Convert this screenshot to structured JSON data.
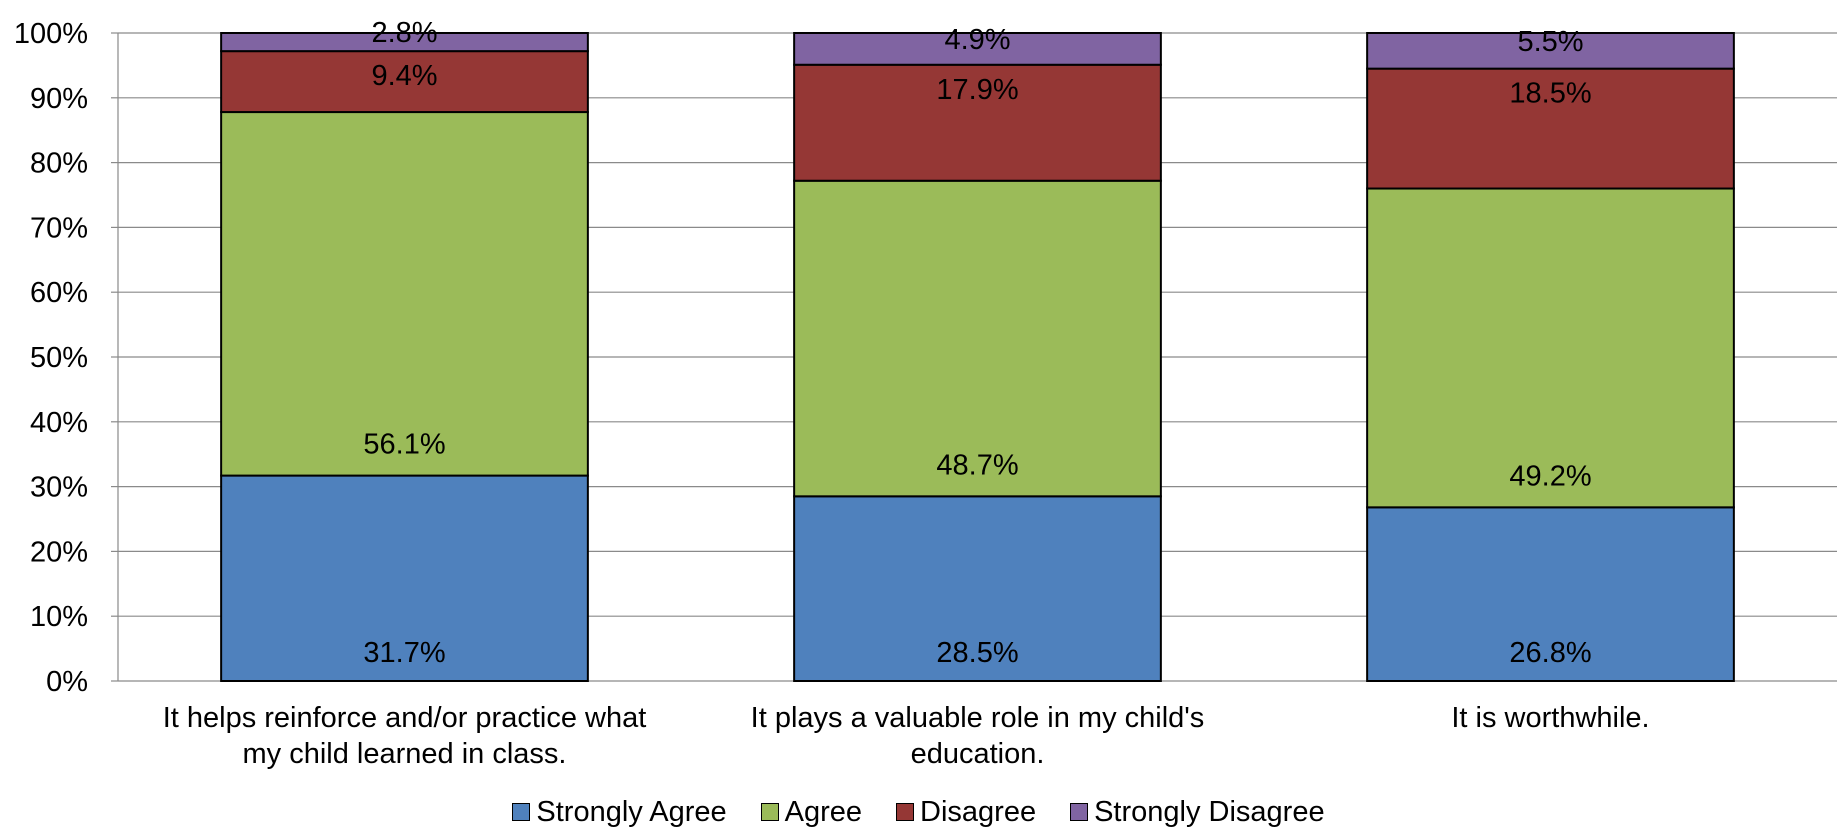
{
  "chart_data": {
    "type": "bar",
    "stacked": true,
    "title": "",
    "xlabel": "",
    "ylabel": "",
    "ylim": [
      0,
      100
    ],
    "y_ticks": [
      "0%",
      "10%",
      "20%",
      "30%",
      "40%",
      "50%",
      "60%",
      "70%",
      "80%",
      "90%",
      "100%"
    ],
    "grid": true,
    "legend_position": "bottom",
    "categories": [
      [
        "It helps reinforce and/or practice what",
        "my child learned in class."
      ],
      [
        "It plays a valuable role in my child's",
        "education."
      ],
      [
        "It is worthwhile."
      ]
    ],
    "series": [
      {
        "name": "Strongly Agree",
        "color": "#4F81BD",
        "values": [
          31.7,
          28.5,
          26.8
        ],
        "labels": [
          "31.7%",
          "28.5%",
          "26.8%"
        ]
      },
      {
        "name": "Agree",
        "color": "#9BBB59",
        "values": [
          56.1,
          48.7,
          49.2
        ],
        "labels": [
          "56.1%",
          "48.7%",
          "49.2%"
        ]
      },
      {
        "name": "Disagree",
        "color": "#953735",
        "values": [
          9.4,
          17.9,
          18.5
        ],
        "labels": [
          "9.4%",
          "17.9%",
          "18.5%"
        ]
      },
      {
        "name": "Strongly Disagree",
        "color": "#8064A2",
        "values": [
          2.8,
          4.9,
          5.5
        ],
        "labels": [
          "2.8%",
          "4.9%",
          "5.5%"
        ]
      }
    ]
  }
}
